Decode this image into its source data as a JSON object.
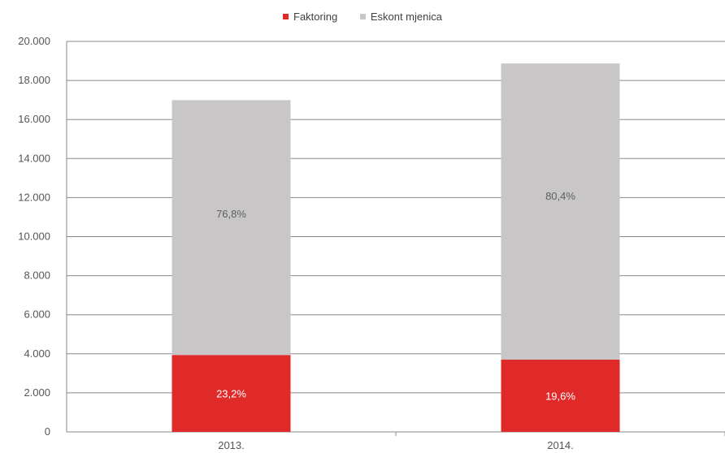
{
  "chart_data": {
    "type": "bar",
    "stacked": true,
    "categories": [
      "2013.",
      "2014."
    ],
    "series": [
      {
        "name": "Faktoring",
        "color": "#e02a2a",
        "values": [
          3940,
          3700
        ],
        "labels": [
          "23,2%",
          "19,6%"
        ],
        "label_color": "#ffffff"
      },
      {
        "name": "Eskont mjenica",
        "color": "#c8c6c6",
        "values": [
          13050,
          15170
        ],
        "labels": [
          "76,8%",
          "80,4%"
        ],
        "label_color": "#606060"
      }
    ],
    "ylim": [
      0,
      20000
    ],
    "yticks": [
      "0",
      "2.000",
      "4.000",
      "6.000",
      "8.000",
      "10.000",
      "12.000",
      "14.000",
      "16.000",
      "18.000",
      "20.000"
    ],
    "grid": true,
    "legend_position": "top-center"
  }
}
